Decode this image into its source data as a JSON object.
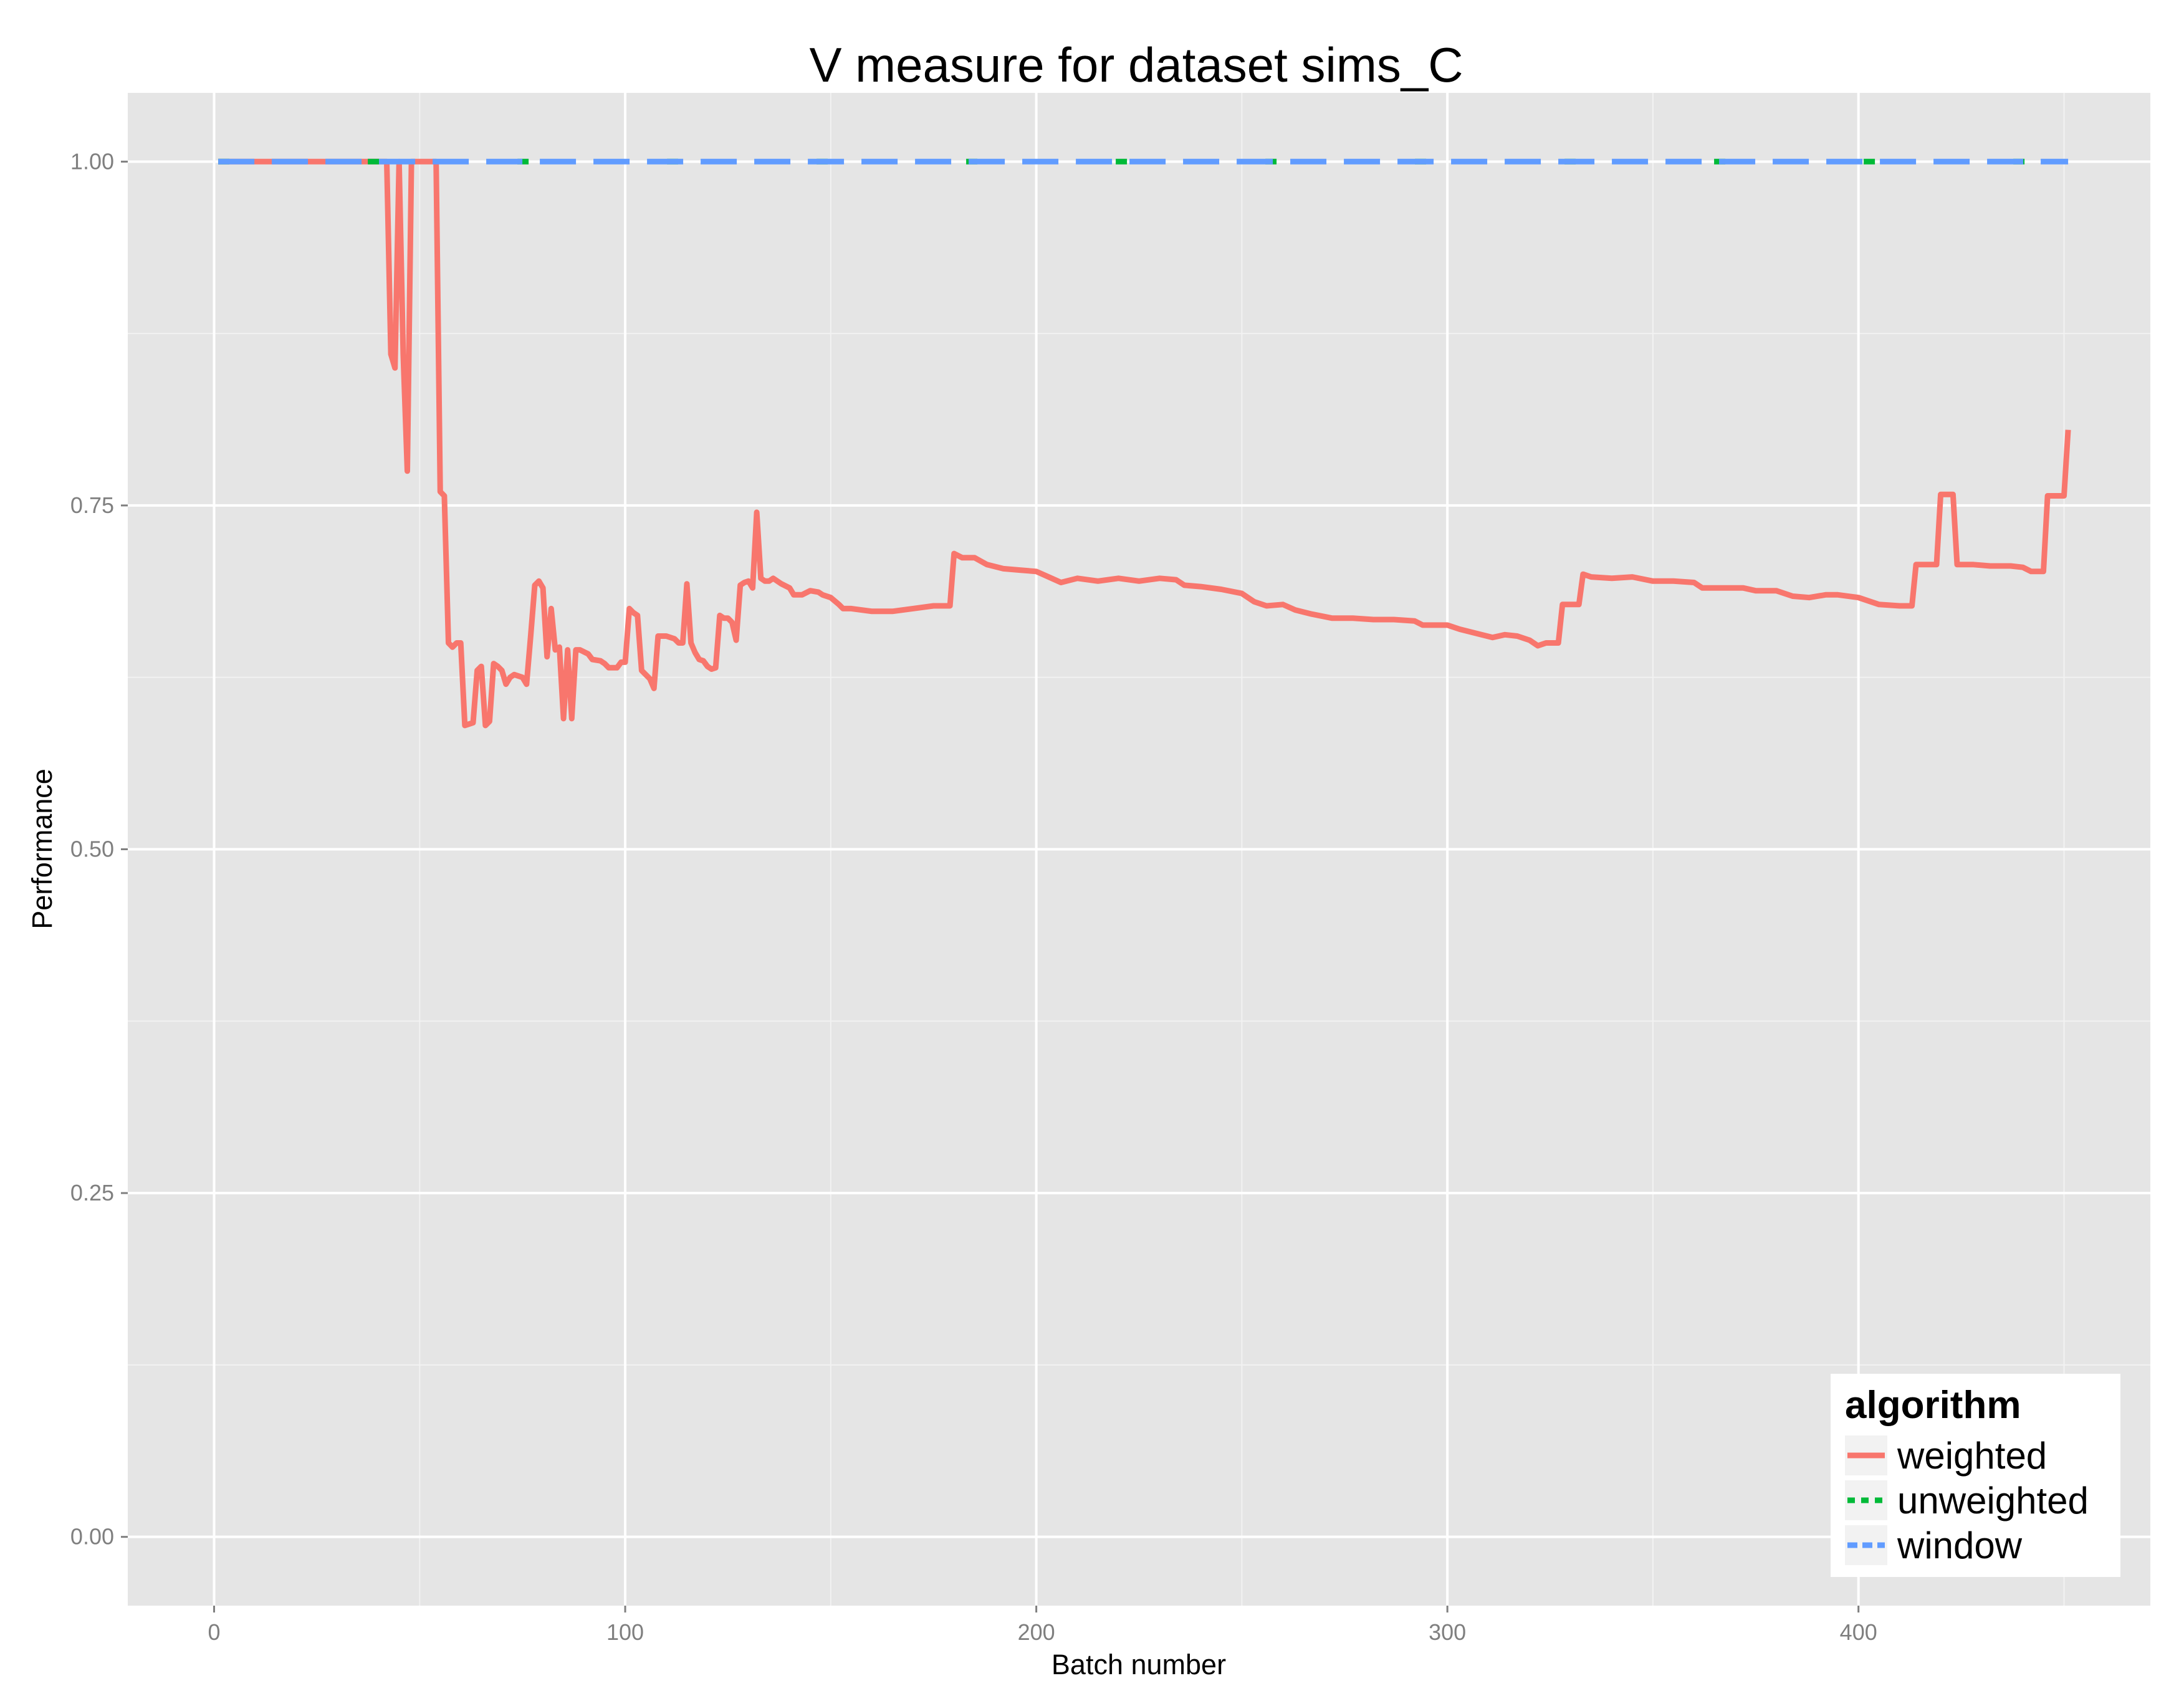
{
  "chart_data": {
    "type": "line",
    "title": "V measure for dataset sims_C",
    "xlabel": "Batch number",
    "ylabel": "Performance",
    "xlim": [
      -21,
      471
    ],
    "ylim": [
      -0.05,
      1.05
    ],
    "x_ticks": [
      {
        "value": 0,
        "label": "0"
      },
      {
        "value": 100,
        "label": "100"
      },
      {
        "value": 200,
        "label": "200"
      },
      {
        "value": 300,
        "label": "300"
      },
      {
        "value": 400,
        "label": "400"
      }
    ],
    "y_ticks": [
      {
        "value": 0,
        "label": "0.00"
      },
      {
        "value": 0.25,
        "label": "0.25"
      },
      {
        "value": 0.5,
        "label": "0.50"
      },
      {
        "value": 0.75,
        "label": "0.75"
      },
      {
        "value": 1.0,
        "label": "1.00"
      }
    ],
    "grid": true,
    "legend": {
      "title": "algorithm",
      "position": "bottom-right"
    },
    "series": [
      {
        "name": "weighted",
        "color": "#F8766D",
        "dash": "solid",
        "points": [
          [
            1,
            1.0
          ],
          [
            42,
            1.0
          ],
          [
            43,
            0.86
          ],
          [
            44,
            0.85
          ],
          [
            45,
            1.0
          ],
          [
            46,
            0.86
          ],
          [
            47,
            0.775
          ],
          [
            48,
            1.0
          ],
          [
            49,
            1.0
          ],
          [
            54,
            1.0
          ],
          [
            55,
            0.76
          ],
          [
            56,
            0.757
          ],
          [
            57,
            0.65
          ],
          [
            58,
            0.647
          ],
          [
            59,
            0.65
          ],
          [
            60,
            0.65
          ],
          [
            61,
            0.59
          ],
          [
            62,
            0.591
          ],
          [
            63,
            0.592
          ],
          [
            64,
            0.63
          ],
          [
            65,
            0.633
          ],
          [
            66,
            0.59
          ],
          [
            67,
            0.593
          ],
          [
            68,
            0.635
          ],
          [
            69,
            0.633
          ],
          [
            70,
            0.63
          ],
          [
            71,
            0.62
          ],
          [
            72,
            0.625
          ],
          [
            73,
            0.627
          ],
          [
            75,
            0.625
          ],
          [
            76,
            0.62
          ],
          [
            77,
            0.655
          ],
          [
            78,
            0.692
          ],
          [
            79,
            0.695
          ],
          [
            80,
            0.69
          ],
          [
            81,
            0.64
          ],
          [
            82,
            0.675
          ],
          [
            83,
            0.645
          ],
          [
            84,
            0.647
          ],
          [
            85,
            0.595
          ],
          [
            86,
            0.645
          ],
          [
            87,
            0.595
          ],
          [
            88,
            0.645
          ],
          [
            89,
            0.645
          ],
          [
            91,
            0.642
          ],
          [
            92,
            0.638
          ],
          [
            94,
            0.637
          ],
          [
            95,
            0.635
          ],
          [
            96,
            0.632
          ],
          [
            98,
            0.632
          ],
          [
            99,
            0.636
          ],
          [
            100,
            0.636
          ],
          [
            101,
            0.675
          ],
          [
            102,
            0.672
          ],
          [
            103,
            0.67
          ],
          [
            104,
            0.63
          ],
          [
            105,
            0.627
          ],
          [
            106,
            0.624
          ],
          [
            107,
            0.617
          ],
          [
            108,
            0.655
          ],
          [
            110,
            0.655
          ],
          [
            112,
            0.653
          ],
          [
            113,
            0.65
          ],
          [
            114,
            0.65
          ],
          [
            115,
            0.693
          ],
          [
            116,
            0.65
          ],
          [
            117,
            0.643
          ],
          [
            118,
            0.638
          ],
          [
            119,
            0.637
          ],
          [
            120,
            0.633
          ],
          [
            121,
            0.631
          ],
          [
            122,
            0.632
          ],
          [
            123,
            0.67
          ],
          [
            124,
            0.668
          ],
          [
            125,
            0.668
          ],
          [
            126,
            0.665
          ],
          [
            127,
            0.652
          ],
          [
            128,
            0.692
          ],
          [
            129,
            0.694
          ],
          [
            130,
            0.695
          ],
          [
            131,
            0.69
          ],
          [
            132,
            0.745
          ],
          [
            133,
            0.697
          ],
          [
            134,
            0.695
          ],
          [
            135,
            0.695
          ],
          [
            136,
            0.697
          ],
          [
            137,
            0.695
          ],
          [
            138,
            0.693
          ],
          [
            140,
            0.69
          ],
          [
            141,
            0.685
          ],
          [
            143,
            0.685
          ],
          [
            145,
            0.688
          ],
          [
            147,
            0.687
          ],
          [
            148,
            0.685
          ],
          [
            150,
            0.683
          ],
          [
            152,
            0.678
          ],
          [
            153,
            0.675
          ],
          [
            155,
            0.675
          ],
          [
            160,
            0.673
          ],
          [
            165,
            0.673
          ],
          [
            170,
            0.675
          ],
          [
            175,
            0.677
          ],
          [
            179,
            0.677
          ],
          [
            180,
            0.715
          ],
          [
            182,
            0.712
          ],
          [
            185,
            0.712
          ],
          [
            188,
            0.707
          ],
          [
            192,
            0.704
          ],
          [
            196,
            0.703
          ],
          [
            200,
            0.702
          ],
          [
            203,
            0.698
          ],
          [
            206,
            0.694
          ],
          [
            210,
            0.697
          ],
          [
            215,
            0.695
          ],
          [
            220,
            0.697
          ],
          [
            225,
            0.695
          ],
          [
            230,
            0.697
          ],
          [
            234,
            0.696
          ],
          [
            236,
            0.692
          ],
          [
            240,
            0.691
          ],
          [
            245,
            0.689
          ],
          [
            250,
            0.686
          ],
          [
            253,
            0.68
          ],
          [
            256,
            0.677
          ],
          [
            260,
            0.678
          ],
          [
            263,
            0.674
          ],
          [
            267,
            0.671
          ],
          [
            272,
            0.668
          ],
          [
            277,
            0.668
          ],
          [
            282,
            0.667
          ],
          [
            287,
            0.667
          ],
          [
            292,
            0.666
          ],
          [
            294,
            0.663
          ],
          [
            300,
            0.663
          ],
          [
            303,
            0.66
          ],
          [
            307,
            0.657
          ],
          [
            311,
            0.654
          ],
          [
            314,
            0.656
          ],
          [
            317,
            0.655
          ],
          [
            320,
            0.652
          ],
          [
            322,
            0.648
          ],
          [
            324,
            0.65
          ],
          [
            327,
            0.65
          ],
          [
            328,
            0.678
          ],
          [
            332,
            0.678
          ],
          [
            333,
            0.7
          ],
          [
            335,
            0.698
          ],
          [
            340,
            0.697
          ],
          [
            345,
            0.698
          ],
          [
            350,
            0.695
          ],
          [
            355,
            0.695
          ],
          [
            360,
            0.694
          ],
          [
            362,
            0.69
          ],
          [
            366,
            0.69
          ],
          [
            372,
            0.69
          ],
          [
            375,
            0.688
          ],
          [
            380,
            0.688
          ],
          [
            384,
            0.684
          ],
          [
            388,
            0.683
          ],
          [
            392,
            0.685
          ],
          [
            395,
            0.685
          ],
          [
            400,
            0.683
          ],
          [
            405,
            0.678
          ],
          [
            410,
            0.677
          ],
          [
            413,
            0.677
          ],
          [
            414,
            0.707
          ],
          [
            419,
            0.707
          ],
          [
            420,
            0.758
          ],
          [
            423,
            0.758
          ],
          [
            424,
            0.707
          ],
          [
            428,
            0.707
          ],
          [
            432,
            0.706
          ],
          [
            437,
            0.706
          ],
          [
            440,
            0.705
          ],
          [
            442,
            0.702
          ],
          [
            445,
            0.702
          ],
          [
            446,
            0.757
          ],
          [
            448,
            0.757
          ],
          [
            450,
            0.757
          ],
          [
            451,
            0.805
          ]
        ]
      },
      {
        "name": "unweighted",
        "color": "#00BA38",
        "dash": "dotted",
        "points": [
          [
            1,
            1.0
          ],
          [
            451,
            1.0
          ]
        ]
      },
      {
        "name": "window",
        "color": "#619CFF",
        "dash": "dashed",
        "points": [
          [
            1,
            1.0
          ],
          [
            451,
            1.0
          ]
        ]
      }
    ]
  }
}
